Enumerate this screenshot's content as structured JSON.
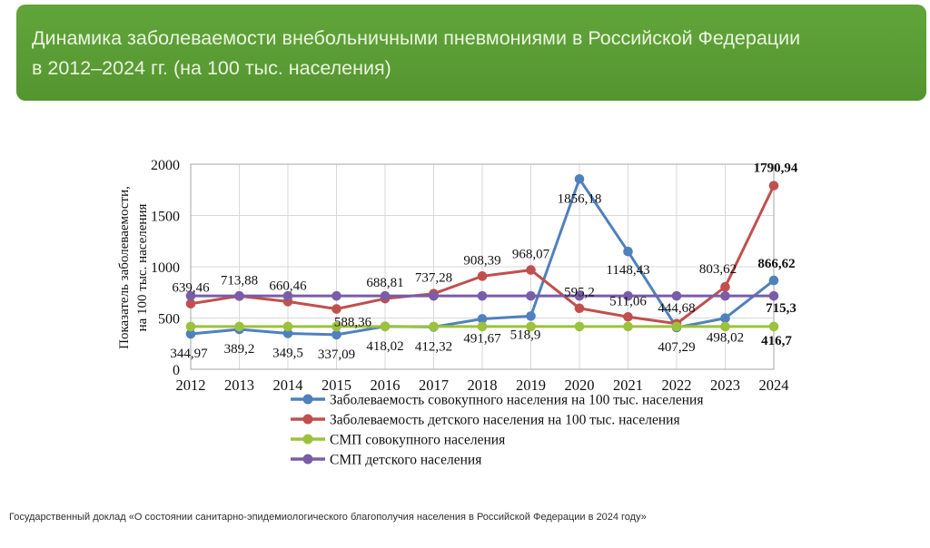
{
  "header": {
    "title_line1": "Динамика заболеваемости внебольничными пневмониями в Российской Федерации",
    "title_line2": "в 2012–2024 гг. (на 100 тыс. населения)",
    "bg_color": "#5a9b31",
    "text_color": "#ebf4df"
  },
  "footer": {
    "source": "Государственный доклад «О состоянии санитарно-эпидемиологического благополучия населения в Российской Федерации в 2024 году»"
  },
  "chart_data": {
    "type": "line",
    "title": "",
    "xlabel": "",
    "ylabel_line1": "Показатель заболеваемости,",
    "ylabel_line2": "на 100 тыс. населения",
    "ylim": [
      0,
      2000
    ],
    "yticks": [
      0,
      500,
      1000,
      1500,
      2000
    ],
    "grid": true,
    "legend_position": "bottom",
    "categories": [
      "2012",
      "2013",
      "2014",
      "2015",
      "2016",
      "2017",
      "2018",
      "2019",
      "2020",
      "2021",
      "2022",
      "2023",
      "2024"
    ],
    "series": [
      {
        "name": "Заболеваемость совокупного населения на 100 тыс. населения",
        "color": "#4F81BD",
        "values": [
          344.97,
          389.2,
          349.5,
          337.09,
          418.02,
          412.32,
          491.67,
          518.9,
          1856.18,
          1148.43,
          407.29,
          498.02,
          866.62
        ],
        "labels": [
          "344,97",
          "389,2",
          "349,5",
          "337,09",
          "418,02",
          "412,32",
          "491,67",
          "518,9",
          "1856,18",
          "1148,43",
          "407,29",
          "498,02",
          "866,62"
        ]
      },
      {
        "name": "Заболеваемость детского населения на 100 тыс. населения",
        "color": "#C0504D",
        "values": [
          639.46,
          713.88,
          660.46,
          588.36,
          688.81,
          737.28,
          908.39,
          968.07,
          595.2,
          511.06,
          444.68,
          803.62,
          1790.94
        ],
        "labels": [
          "639,46",
          "713,88",
          "660,46",
          "588,36",
          "688,81",
          "737,28",
          "908,39",
          "968,07",
          "595,2",
          "511,06",
          "444,68",
          "803,62",
          "1790,94"
        ]
      },
      {
        "name": "СМП совокупного населения",
        "color": "#9CC23C",
        "values": [
          416.7,
          416.7,
          416.7,
          416.7,
          416.7,
          416.7,
          416.7,
          416.7,
          416.7,
          416.7,
          416.7,
          416.7,
          416.7
        ],
        "labels": [
          null,
          null,
          null,
          null,
          null,
          null,
          null,
          null,
          null,
          null,
          null,
          null,
          "416,7"
        ]
      },
      {
        "name": "СМП детского населения",
        "color": "#7A5DA8",
        "values": [
          715.3,
          715.3,
          715.3,
          715.3,
          715.3,
          715.3,
          715.3,
          715.3,
          715.3,
          715.3,
          715.3,
          715.3,
          715.3
        ],
        "labels": [
          null,
          null,
          null,
          null,
          null,
          null,
          null,
          null,
          null,
          null,
          null,
          null,
          "715,3"
        ]
      }
    ],
    "colors": {
      "gridline": "#d9d9d9",
      "plot_border": "#b3b3b3",
      "text": "#111111"
    }
  }
}
